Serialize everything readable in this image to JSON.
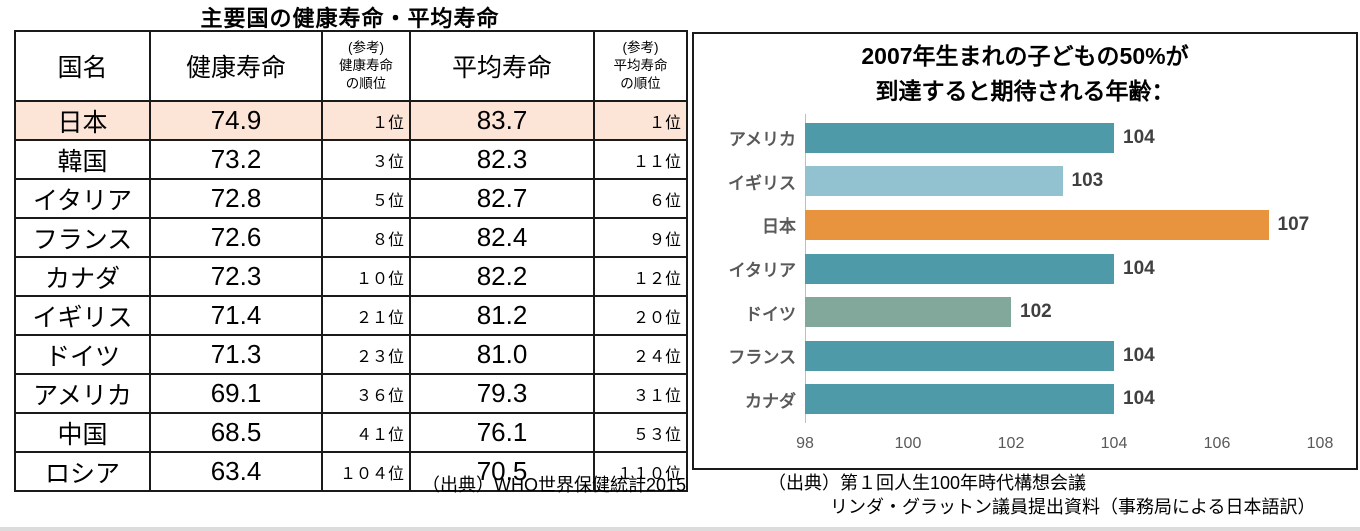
{
  "page": {
    "bottom_strip_color": "#dcdcdc"
  },
  "table_section": {
    "title": "主要国の健康寿命・平均寿命",
    "source": "（出典）WHO世界保健統計2015",
    "highlight_color": "#fce4d6",
    "columns": [
      {
        "key": "country",
        "label": "国名",
        "type": "main"
      },
      {
        "key": "healthy",
        "label": "健康寿命",
        "type": "main"
      },
      {
        "key": "healthy_rank",
        "label_lines": [
          "(参考)",
          "健康寿命",
          "の順位"
        ],
        "type": "small"
      },
      {
        "key": "average",
        "label": "平均寿命",
        "type": "main"
      },
      {
        "key": "average_rank",
        "label_lines": [
          "(参考)",
          "平均寿命",
          "の順位"
        ],
        "type": "small"
      }
    ],
    "rows": [
      {
        "country": "日本",
        "healthy": "74.9",
        "healthy_rank": "１位",
        "average": "83.7",
        "average_rank": "１位",
        "highlight": true
      },
      {
        "country": "韓国",
        "healthy": "73.2",
        "healthy_rank": "３位",
        "average": "82.3",
        "average_rank": "１１位",
        "highlight": false
      },
      {
        "country": "イタリア",
        "healthy": "72.8",
        "healthy_rank": "５位",
        "average": "82.7",
        "average_rank": "６位",
        "highlight": false
      },
      {
        "country": "フランス",
        "healthy": "72.6",
        "healthy_rank": "８位",
        "average": "82.4",
        "average_rank": "９位",
        "highlight": false
      },
      {
        "country": "カナダ",
        "healthy": "72.3",
        "healthy_rank": "１０位",
        "average": "82.2",
        "average_rank": "１２位",
        "highlight": false
      },
      {
        "country": "イギリス",
        "healthy": "71.4",
        "healthy_rank": "２１位",
        "average": "81.2",
        "average_rank": "２０位",
        "highlight": false
      },
      {
        "country": "ドイツ",
        "healthy": "71.3",
        "healthy_rank": "２３位",
        "average": "81.0",
        "average_rank": "２４位",
        "highlight": false
      },
      {
        "country": "アメリカ",
        "healthy": "69.1",
        "healthy_rank": "３６位",
        "average": "79.3",
        "average_rank": "３１位",
        "highlight": false
      },
      {
        "country": "中国",
        "healthy": "68.5",
        "healthy_rank": "４１位",
        "average": "76.1",
        "average_rank": "５３位",
        "highlight": false
      },
      {
        "country": "ロシア",
        "healthy": "63.4",
        "healthy_rank": "１０４位",
        "average": "70.5",
        "average_rank": "１１０位",
        "highlight": false
      }
    ]
  },
  "chart_section": {
    "title_lines": [
      "2007年生まれの子どもの50%が",
      "到達すると期待される年齢："
    ],
    "source_lines": [
      "（出典）第１回人生100年時代構想会議",
      "リンダ・グラットン議員提出資料（事務局による日本語訳）"
    ]
  },
  "chart_data": {
    "type": "bar",
    "orientation": "horizontal",
    "title": "2007年生まれの子どもの50%が到達すると期待される年齢：",
    "categories": [
      "アメリカ",
      "イギリス",
      "日本",
      "イタリア",
      "ドイツ",
      "フランス",
      "カナダ"
    ],
    "values": [
      104,
      103,
      107,
      104,
      102,
      104,
      104
    ],
    "bar_colors": [
      "#4f9aa8",
      "#92c1cf",
      "#e8943e",
      "#4f9aa8",
      "#82a89c",
      "#4f9aa8",
      "#4f9aa8"
    ],
    "xlim": [
      98,
      108
    ],
    "xticks": [
      98,
      100,
      102,
      104,
      106,
      108
    ],
    "grid": false,
    "legend": false,
    "data_labels": true,
    "category_label_color": "#595959",
    "value_label_color": "#404040",
    "axis_line_color": "#bfbfbf"
  }
}
